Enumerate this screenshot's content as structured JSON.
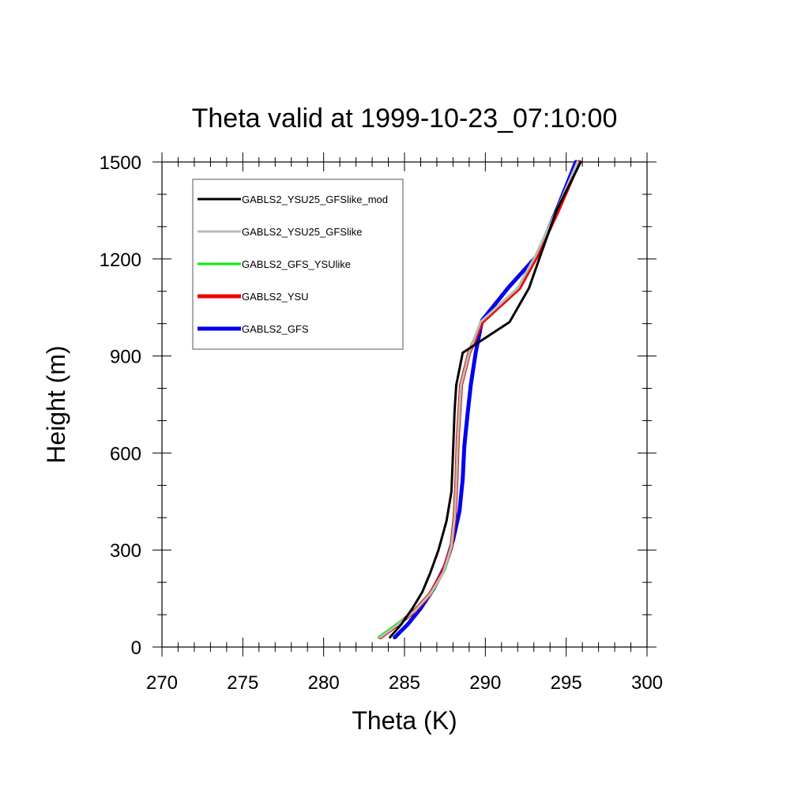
{
  "chart_data": {
    "type": "line",
    "title": "Theta valid at 1999-10-23_07:10:00",
    "xlabel": "Theta (K)",
    "ylabel": "Height (m)",
    "xlim": [
      270,
      300
    ],
    "ylim": [
      0,
      1500
    ],
    "xticks": [
      270,
      275,
      280,
      285,
      290,
      295,
      300
    ],
    "yticks": [
      0,
      300,
      600,
      900,
      1200,
      1500
    ],
    "xtick_labels": [
      "270",
      "275",
      "280",
      "285",
      "290",
      "295",
      "300"
    ],
    "ytick_labels": [
      "0",
      "300",
      "600",
      "900",
      "1200",
      "1500"
    ],
    "grid": false,
    "legend_position": "top-left",
    "series": [
      {
        "name": "GABLS2_YSU25_GFSlike_mod",
        "color": "#000000",
        "width": 3,
        "points": [
          [
            284.1,
            30
          ],
          [
            284.8,
            70
          ],
          [
            285.5,
            120
          ],
          [
            286.1,
            170
          ],
          [
            286.6,
            230
          ],
          [
            287.1,
            300
          ],
          [
            287.6,
            390
          ],
          [
            287.9,
            480
          ],
          [
            288.0,
            600
          ],
          [
            288.1,
            730
          ],
          [
            288.2,
            810
          ],
          [
            288.6,
            910
          ],
          [
            291.5,
            1005
          ],
          [
            292.7,
            1110
          ],
          [
            293.4,
            1210
          ],
          [
            294.4,
            1350
          ],
          [
            295.9,
            1500
          ]
        ]
      },
      {
        "name": "GABLS2_YSU25_GFSlike",
        "color": "#bbbbbb",
        "width": 3,
        "points": [
          [
            283.5,
            30
          ],
          [
            284.6,
            70
          ],
          [
            285.6,
            110
          ],
          [
            286.6,
            165
          ],
          [
            287.4,
            230
          ],
          [
            287.9,
            310
          ],
          [
            288.1,
            400
          ],
          [
            288.2,
            500
          ],
          [
            288.3,
            650
          ],
          [
            288.5,
            810
          ],
          [
            289.0,
            910
          ],
          [
            289.7,
            1005
          ],
          [
            292.0,
            1110
          ],
          [
            293.1,
            1210
          ],
          [
            294.4,
            1350
          ],
          [
            295.7,
            1500
          ]
        ]
      },
      {
        "name": "GABLS2_GFS_YSUlike",
        "color": "#00ee00",
        "width": 3,
        "points": [
          [
            283.4,
            30
          ],
          [
            284.5,
            70
          ],
          [
            285.6,
            110
          ],
          [
            286.7,
            170
          ],
          [
            287.5,
            240
          ],
          [
            287.9,
            315
          ],
          [
            288.1,
            400
          ],
          [
            288.2,
            500
          ],
          [
            288.3,
            650
          ],
          [
            288.5,
            810
          ],
          [
            289.0,
            910
          ],
          [
            289.7,
            1005
          ],
          [
            292.0,
            1110
          ],
          [
            293.1,
            1210
          ],
          [
            294.4,
            1350
          ],
          [
            295.7,
            1500
          ]
        ]
      },
      {
        "name": "GABLS2_YSU",
        "color": "#ee0000",
        "width": 5,
        "points": [
          [
            283.5,
            30
          ],
          [
            284.6,
            70
          ],
          [
            285.6,
            110
          ],
          [
            286.6,
            165
          ],
          [
            287.4,
            235
          ],
          [
            287.9,
            310
          ],
          [
            288.1,
            400
          ],
          [
            288.2,
            500
          ],
          [
            288.3,
            650
          ],
          [
            288.5,
            810
          ],
          [
            289.0,
            910
          ],
          [
            289.8,
            1005
          ],
          [
            292.1,
            1110
          ],
          [
            293.2,
            1210
          ],
          [
            294.5,
            1350
          ],
          [
            295.8,
            1500
          ]
        ]
      },
      {
        "name": "GABLS2_GFS",
        "color": "#0000ee",
        "width": 5,
        "points": [
          [
            284.4,
            30
          ],
          [
            285.2,
            70
          ],
          [
            286.0,
            120
          ],
          [
            286.8,
            180
          ],
          [
            287.5,
            250
          ],
          [
            288.0,
            330
          ],
          [
            288.4,
            420
          ],
          [
            288.6,
            520
          ],
          [
            288.7,
            620
          ],
          [
            288.9,
            720
          ],
          [
            289.1,
            810
          ],
          [
            289.4,
            910
          ],
          [
            289.8,
            1010
          ],
          [
            291.4,
            1110
          ],
          [
            293.2,
            1210
          ],
          [
            294.4,
            1350
          ],
          [
            295.6,
            1500
          ]
        ]
      }
    ]
  }
}
